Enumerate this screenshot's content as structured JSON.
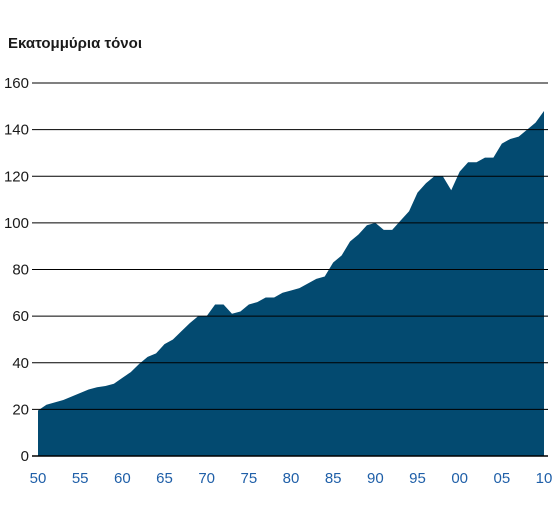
{
  "chart_data": {
    "type": "area",
    "title": "",
    "ylabel": "Εκατομμύρια τόνοι",
    "xlabel": "",
    "ylim": [
      0,
      160
    ],
    "xlim": [
      1950,
      2010
    ],
    "grid": true,
    "yticks": [
      0,
      20,
      40,
      60,
      80,
      100,
      120,
      140,
      160
    ],
    "xticks": [
      {
        "value": 1950,
        "label": "50"
      },
      {
        "value": 1955,
        "label": "55"
      },
      {
        "value": 1960,
        "label": "60"
      },
      {
        "value": 1965,
        "label": "65"
      },
      {
        "value": 1970,
        "label": "70"
      },
      {
        "value": 1975,
        "label": "75"
      },
      {
        "value": 1980,
        "label": "80"
      },
      {
        "value": 1985,
        "label": "85"
      },
      {
        "value": 1990,
        "label": "90"
      },
      {
        "value": 1995,
        "label": "95"
      },
      {
        "value": 2000,
        "label": "00"
      },
      {
        "value": 2005,
        "label": "05"
      },
      {
        "value": 2010,
        "label": "10"
      }
    ],
    "colors": {
      "area": "#034a70",
      "grid": "#000000",
      "xtick": "#1f5fa8",
      "ytick": "#1a1a1a"
    },
    "x": [
      1950,
      1951,
      1952,
      1953,
      1954,
      1955,
      1956,
      1957,
      1958,
      1959,
      1960,
      1961,
      1962,
      1963,
      1964,
      1965,
      1966,
      1967,
      1968,
      1969,
      1970,
      1971,
      1972,
      1973,
      1974,
      1975,
      1976,
      1977,
      1978,
      1979,
      1980,
      1981,
      1982,
      1983,
      1984,
      1985,
      1986,
      1987,
      1988,
      1989,
      1990,
      1991,
      1992,
      1993,
      1994,
      1995,
      1996,
      1997,
      1998,
      1999,
      2000,
      2001,
      2002,
      2003,
      2004,
      2005,
      2006,
      2007,
      2008,
      2009,
      2010
    ],
    "values": [
      19.5,
      22,
      23,
      24,
      25.5,
      27,
      28.5,
      29.5,
      30,
      31,
      33.5,
      36,
      39.5,
      42.5,
      44,
      48,
      50,
      53.5,
      57,
      60,
      60,
      65,
      65,
      61,
      62,
      65,
      66,
      68,
      68,
      70,
      71,
      72,
      74,
      76,
      77,
      83,
      86,
      92,
      95,
      99,
      100,
      97,
      97,
      101,
      105,
      113,
      117,
      120,
      120,
      114,
      122,
      126,
      126,
      128,
      128,
      134,
      136,
      137,
      140,
      143,
      148
    ]
  }
}
